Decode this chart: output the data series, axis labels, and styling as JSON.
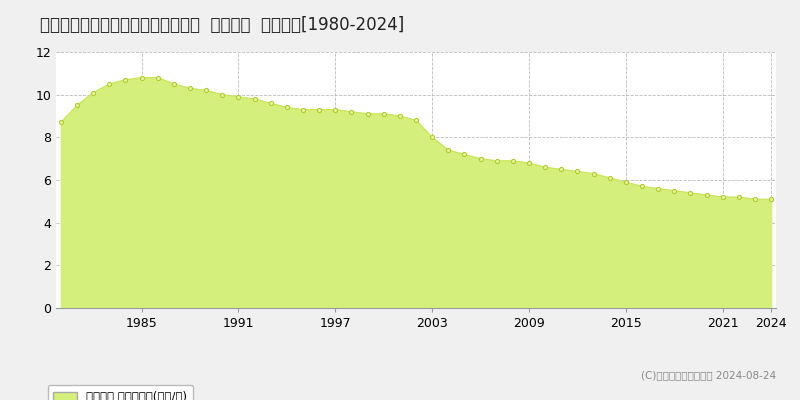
{
  "title": "北海道登別市常盤町１丁目３１番２  地価公示  地価推移[1980-2024]",
  "years": [
    1980,
    1981,
    1982,
    1983,
    1984,
    1985,
    1986,
    1987,
    1988,
    1989,
    1990,
    1991,
    1992,
    1993,
    1994,
    1995,
    1996,
    1997,
    1998,
    1999,
    2000,
    2001,
    2002,
    2003,
    2004,
    2005,
    2006,
    2007,
    2008,
    2009,
    2010,
    2011,
    2012,
    2013,
    2014,
    2015,
    2016,
    2017,
    2018,
    2019,
    2020,
    2021,
    2022,
    2023,
    2024
  ],
  "values": [
    8.7,
    9.5,
    10.1,
    10.5,
    10.7,
    10.8,
    10.8,
    10.5,
    10.3,
    10.2,
    10.0,
    9.9,
    9.8,
    9.6,
    9.4,
    9.3,
    9.3,
    9.3,
    9.2,
    9.1,
    9.1,
    9.0,
    8.8,
    8.0,
    7.4,
    7.2,
    7.0,
    6.9,
    6.9,
    6.8,
    6.6,
    6.5,
    6.4,
    6.3,
    6.1,
    5.9,
    5.7,
    5.6,
    5.5,
    5.4,
    5.3,
    5.2,
    5.2,
    5.1,
    5.1
  ],
  "fill_color": "#d4ef7b",
  "line_color": "#c8e655",
  "marker_facecolor": "#e8f5a0",
  "marker_edgecolor": "#b0cc30",
  "bg_color": "#f0f0f0",
  "plot_bg_color": "#ffffff",
  "grid_color": "#bbbbbb",
  "ylim": [
    0,
    12
  ],
  "yticks": [
    0,
    2,
    4,
    6,
    8,
    10,
    12
  ],
  "xlabel_ticks": [
    1985,
    1991,
    1997,
    2003,
    2009,
    2015,
    2021,
    2024
  ],
  "title_fontsize": 12,
  "legend_label": "地価公示 平均坪単価(万円/坪)",
  "copyright_text": "(C)土地価格ドットコム 2024-08-24"
}
